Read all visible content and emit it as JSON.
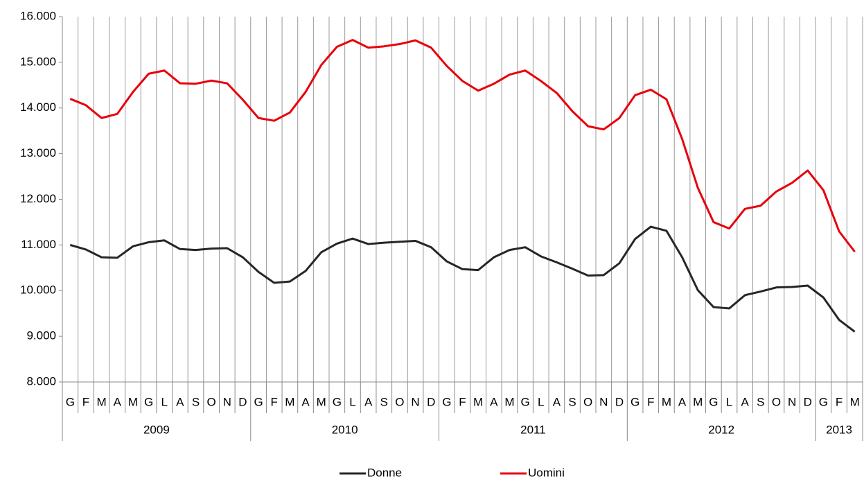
{
  "chart_data": {
    "type": "line",
    "categories": [
      "G",
      "F",
      "M",
      "A",
      "M",
      "G",
      "L",
      "A",
      "S",
      "O",
      "N",
      "D",
      "G",
      "F",
      "M",
      "A",
      "M",
      "G",
      "L",
      "A",
      "S",
      "O",
      "N",
      "D",
      "G",
      "F",
      "M",
      "A",
      "M",
      "G",
      "L",
      "A",
      "S",
      "O",
      "N",
      "D",
      "G",
      "F",
      "M",
      "A",
      "M",
      "G",
      "L",
      "A",
      "S",
      "O",
      "N",
      "D",
      "G",
      "F",
      "M"
    ],
    "group_labels": [
      "2009",
      null,
      null,
      null,
      null,
      null,
      null,
      null,
      null,
      null,
      null,
      null,
      "2010",
      null,
      null,
      null,
      null,
      null,
      null,
      null,
      null,
      null,
      null,
      null,
      "2011",
      null,
      null,
      null,
      null,
      null,
      null,
      null,
      null,
      null,
      null,
      null,
      "2012",
      null,
      null,
      null,
      null,
      null,
      null,
      null,
      null,
      null,
      null,
      null,
      "2013",
      null,
      null
    ],
    "series": [
      {
        "name": "Donne",
        "color": "#262626",
        "values": [
          11000,
          10900,
          10730,
          10720,
          10970,
          11060,
          11100,
          10910,
          10890,
          10920,
          10930,
          10730,
          10410,
          10170,
          10200,
          10430,
          10840,
          11030,
          11140,
          11020,
          11050,
          11070,
          11090,
          10950,
          10640,
          10470,
          10450,
          10730,
          10890,
          10950,
          10750,
          10620,
          10480,
          10330,
          10340,
          10600,
          11130,
          11400,
          11310,
          10730,
          10010,
          9640,
          9610,
          9900,
          9980,
          10070,
          10080,
          10110,
          9850,
          9360,
          9100
        ]
      },
      {
        "name": "Uomini",
        "color": "#e8000b",
        "values": [
          14200,
          14060,
          13780,
          13870,
          14350,
          14750,
          14820,
          14540,
          14530,
          14600,
          14540,
          14180,
          13780,
          13720,
          13900,
          14350,
          14940,
          15340,
          15490,
          15320,
          15350,
          15400,
          15480,
          15320,
          14920,
          14590,
          14380,
          14530,
          14730,
          14820,
          14590,
          14330,
          13930,
          13600,
          13530,
          13780,
          14280,
          14400,
          14190,
          13320,
          12250,
          11500,
          11360,
          11790,
          11860,
          12170,
          12360,
          12630,
          12200,
          11300,
          10850
        ]
      }
    ],
    "ylim": [
      8000,
      16000
    ],
    "yticks": [
      {
        "value": 8000,
        "label": "8.000"
      },
      {
        "value": 9000,
        "label": "9.000"
      },
      {
        "value": 10000,
        "label": "10.000"
      },
      {
        "value": 11000,
        "label": "11.000"
      },
      {
        "value": 12000,
        "label": "12.000"
      },
      {
        "value": 13000,
        "label": "13.000"
      },
      {
        "value": 14000,
        "label": "14.000"
      },
      {
        "value": 15000,
        "label": "15.000"
      },
      {
        "value": 16000,
        "label": "16.000"
      }
    ]
  }
}
